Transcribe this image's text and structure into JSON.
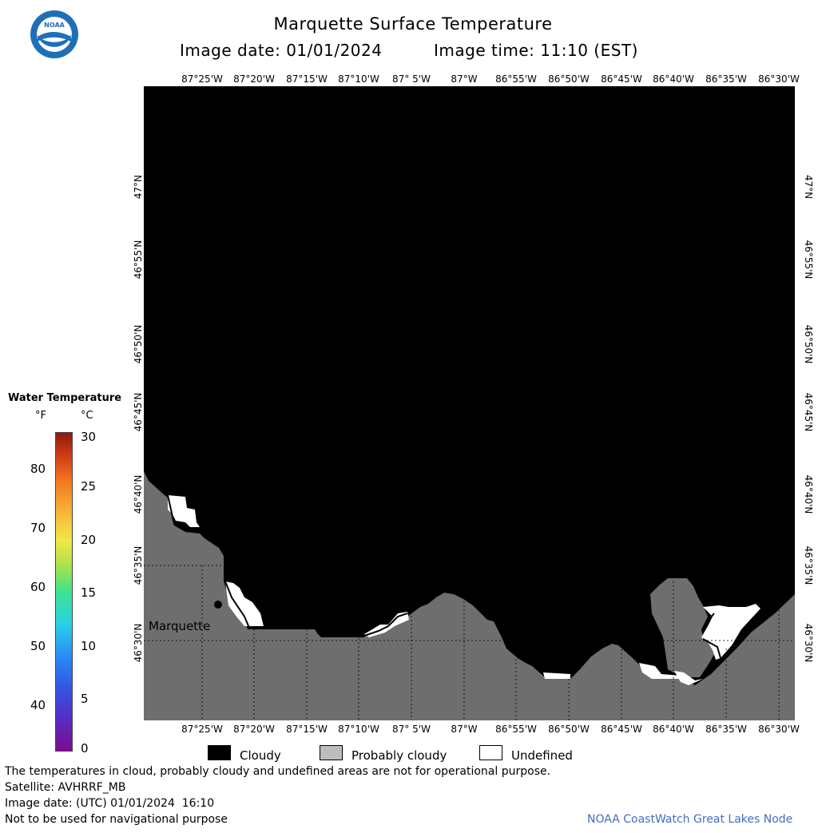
{
  "header": {
    "title": "Marquette Surface Temperature",
    "date_text": "Image date: 01/01/2024",
    "time_text": "Image time: 11:10 (EST)"
  },
  "logo": {
    "text": "NOAA",
    "colors": {
      "outer": "#1e6fb8",
      "inner": "#ffffff",
      "bird": "#1e6fb8"
    }
  },
  "map": {
    "lon_labels": [
      "87°25'W",
      "87°20'W",
      "87°15'W",
      "87°10'W",
      "87° 5'W",
      "87°W",
      "86°55'W",
      "86°50'W",
      "86°45'W",
      "86°40'W",
      "86°35'W",
      "86°30'W"
    ],
    "lat_labels": [
      "47°N",
      "46°55'N",
      "46°50'N",
      "46°45'N",
      "46°40'N",
      "46°35'N",
      "46°30'N"
    ],
    "city": "Marquette",
    "colors": {
      "cloudy": "#000000",
      "land": "#6e6e6e",
      "undefined": "#ffffff"
    }
  },
  "legend": {
    "title": "Water Temperature",
    "unit_f": "°F",
    "unit_c": "°C",
    "f_ticks": [
      "80",
      "70",
      "60",
      "50",
      "40"
    ],
    "c_ticks": [
      "30",
      "25",
      "20",
      "15",
      "10",
      "5",
      "0"
    ],
    "categories": [
      {
        "label": "Cloudy",
        "color": "#000000"
      },
      {
        "label": "Probably cloudy",
        "color": "#bdbdbd"
      },
      {
        "label": "Undefined",
        "color": "#ffffff"
      }
    ]
  },
  "footer": {
    "disclaimer": "The temperatures in cloud, probably cloudy and undefined areas are not for operational purpose.",
    "satellite": "Satellite: AVHRRF_MB",
    "utc_date": "Image date: (UTC) 01/01/2024  16:10",
    "nav_warning": "Not to be used for navigational purpose",
    "credit": "NOAA CoastWatch Great Lakes Node"
  }
}
